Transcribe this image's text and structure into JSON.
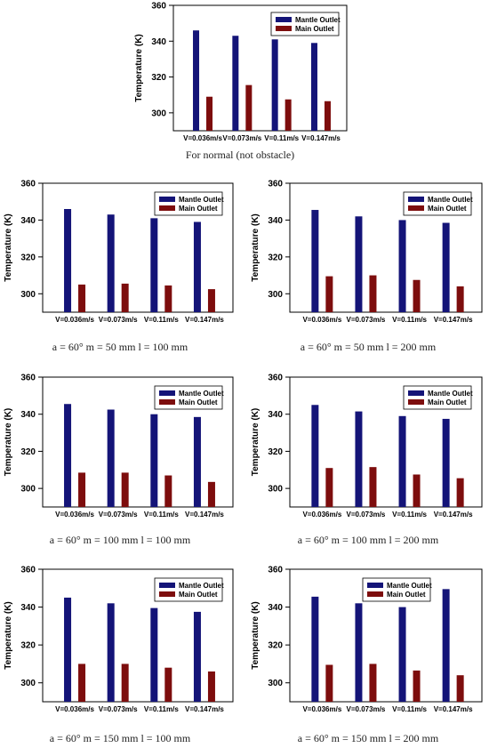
{
  "colors": {
    "mantle": "#141478",
    "main": "#7d0d0d",
    "axis": "#000000"
  },
  "chart_data": [
    {
      "type": "bar",
      "caption": "For normal (not obstacle)",
      "ylabel": "Temperature (K)",
      "ylim": [
        290,
        360
      ],
      "yticks": [
        300,
        320,
        340,
        360
      ],
      "categories": [
        "V=0.036m/s",
        "V=0.073m/s",
        "V=0.11m/s",
        "V=0.147m/s"
      ],
      "series": [
        {
          "name": "Mantle Outlet",
          "values": [
            346,
            343,
            341,
            339
          ]
        },
        {
          "name": "Main Outlet",
          "values": [
            309,
            315.5,
            307.5,
            306.5
          ]
        }
      ],
      "legend": "top-right"
    },
    {
      "type": "bar",
      "caption": "a = 60° m = 50 mm l = 100 mm",
      "ylabel": "Temperature (K)",
      "ylim": [
        290,
        360
      ],
      "yticks": [
        300,
        320,
        340,
        360
      ],
      "categories": [
        "V=0.036m/s",
        "V=0.073m/s",
        "V=0.11m/s",
        "V=0.147m/s"
      ],
      "series": [
        {
          "name": "Mantle Outlet",
          "values": [
            346,
            343,
            341,
            339
          ]
        },
        {
          "name": "Main Outlet",
          "values": [
            305,
            305.5,
            304.5,
            302.5
          ]
        }
      ],
      "legend": "top-right"
    },
    {
      "type": "bar",
      "caption": "a = 60° m = 50 mm l = 200 mm",
      "ylabel": "Temperature (K)",
      "ylim": [
        290,
        360
      ],
      "yticks": [
        300,
        320,
        340,
        360
      ],
      "categories": [
        "V=0.036m/s",
        "V=0.073m/s",
        "V=0.11m/s",
        "V=0.147m/s"
      ],
      "series": [
        {
          "name": "Mantle Outlet",
          "values": [
            345.5,
            342,
            340,
            338.5
          ]
        },
        {
          "name": "Main Outlet",
          "values": [
            309.5,
            310,
            307.5,
            304
          ]
        }
      ],
      "legend": "top-right"
    },
    {
      "type": "bar",
      "caption": "a = 60° m = 100 mm l = 100 mm",
      "ylabel": "Temperature (K)",
      "ylim": [
        290,
        360
      ],
      "yticks": [
        300,
        320,
        340,
        360
      ],
      "categories": [
        "V=0.036m/s",
        "V=0.073m/s",
        "V=0.11m/s",
        "V=0.147m/s"
      ],
      "series": [
        {
          "name": "Mantle Outlet",
          "values": [
            345.5,
            342.5,
            340,
            338.5
          ]
        },
        {
          "name": "Main Outlet",
          "values": [
            308.5,
            308.5,
            307,
            303.5
          ]
        }
      ],
      "legend": "top-right"
    },
    {
      "type": "bar",
      "caption": "a = 60° m = 100 mm l = 200 mm",
      "ylabel": "Temperature (K)",
      "ylim": [
        290,
        360
      ],
      "yticks": [
        300,
        320,
        340,
        360
      ],
      "categories": [
        "V=0.036m/s",
        "V=0.073m/s",
        "V=0.11m/s",
        "V=0.147m/s"
      ],
      "series": [
        {
          "name": "Mantle Outlet",
          "values": [
            345,
            341.5,
            339,
            337.5
          ]
        },
        {
          "name": "Main Outlet",
          "values": [
            311,
            311.5,
            307.5,
            305.5
          ]
        }
      ],
      "legend": "top-right"
    },
    {
      "type": "bar",
      "caption": "a = 60° m = 150 mm l = 100 mm",
      "ylabel": "Temperature (K)",
      "ylim": [
        290,
        360
      ],
      "yticks": [
        300,
        320,
        340,
        360
      ],
      "categories": [
        "V=0.036m/s",
        "V=0.073m/s",
        "V=0.11m/s",
        "V=0.147m/s"
      ],
      "series": [
        {
          "name": "Mantle Outlet",
          "values": [
            345,
            342,
            339.5,
            337.5
          ]
        },
        {
          "name": "Main Outlet",
          "values": [
            310,
            310,
            308,
            306
          ]
        }
      ],
      "legend": "top-right"
    },
    {
      "type": "bar",
      "caption": "a = 60° m = 150 mm l = 200 mm",
      "ylabel": "Temperature (K)",
      "ylim": [
        290,
        360
      ],
      "yticks": [
        300,
        320,
        340,
        360
      ],
      "categories": [
        "V=0.036m/s",
        "V=0.073m/s",
        "V=0.11m/s",
        "V=0.147m/s"
      ],
      "series": [
        {
          "name": "Mantle Outlet",
          "values": [
            345.5,
            342,
            340,
            349.5
          ]
        },
        {
          "name": "Main Outlet",
          "values": [
            309.5,
            310,
            306.5,
            304
          ]
        }
      ],
      "legend": "top-center"
    }
  ]
}
